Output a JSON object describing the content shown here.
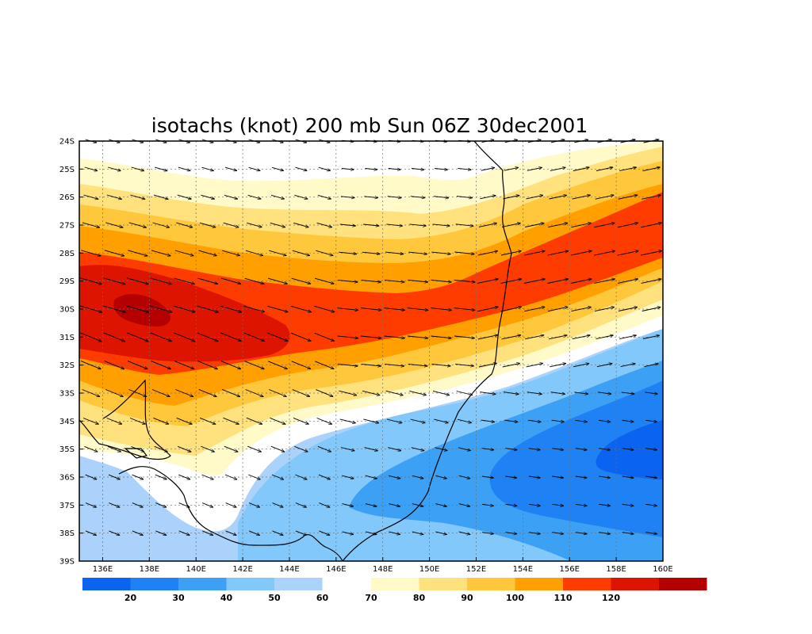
{
  "chart_data": {
    "type": "heatmap",
    "title": "isotachs (knot) 200 mb Sun 06Z 30dec2001",
    "variable": "isotachs",
    "units": "knot",
    "level": "200 mb",
    "valid_time": "Sun 06Z 30dec2001",
    "lon_range": [
      135,
      160
    ],
    "lat_range": [
      -39,
      -24
    ],
    "x_ticks": [
      "136E",
      "138E",
      "140E",
      "142E",
      "144E",
      "146E",
      "148E",
      "150E",
      "152E",
      "154E",
      "156E",
      "158E",
      "160E"
    ],
    "y_ticks": [
      "24S",
      "25S",
      "26S",
      "27S",
      "28S",
      "29S",
      "30S",
      "31S",
      "32S",
      "33S",
      "34S",
      "35S",
      "36S",
      "37S",
      "38S",
      "39S"
    ],
    "grid": true,
    "contour_levels": [
      20,
      30,
      40,
      50,
      60,
      70,
      80,
      90,
      100,
      110,
      120
    ],
    "colorbar": {
      "placement": "bottom",
      "lower_colors": [
        "#0a64f0",
        "#1e82f5",
        "#3ca0f5",
        "#82c8fa",
        "#aad2fa"
      ],
      "lower_labels": [
        "20",
        "30",
        "40",
        "50",
        "60"
      ],
      "upper_colors": [
        "#fffac8",
        "#ffe17d",
        "#ffc83c",
        "#ffa000",
        "#ff3c00",
        "#dc1400",
        "#b40000"
      ],
      "upper_labels": [
        "70",
        "80",
        "90",
        "100",
        "110",
        "120"
      ]
    },
    "jet_axis_knot": [
      {
        "lon": 137.5,
        "lat": -30.2,
        "speed": 125
      },
      {
        "lon": 142,
        "lat": -30.8,
        "speed": 112
      },
      {
        "lon": 148,
        "lat": -30.5,
        "speed": 102
      },
      {
        "lon": 152,
        "lat": -29.6,
        "speed": 106
      },
      {
        "lon": 157,
        "lat": -28.3,
        "speed": 108
      },
      {
        "lon": 160,
        "lat": -27.6,
        "speed": 108
      }
    ],
    "minimum_knot": [
      {
        "lon": 157.5,
        "lat": -35.4,
        "speed": 20
      }
    ],
    "wind_vectors": "westerly, spaced every 1 degree; 60-110 kt in the jet band, weaker southward"
  }
}
